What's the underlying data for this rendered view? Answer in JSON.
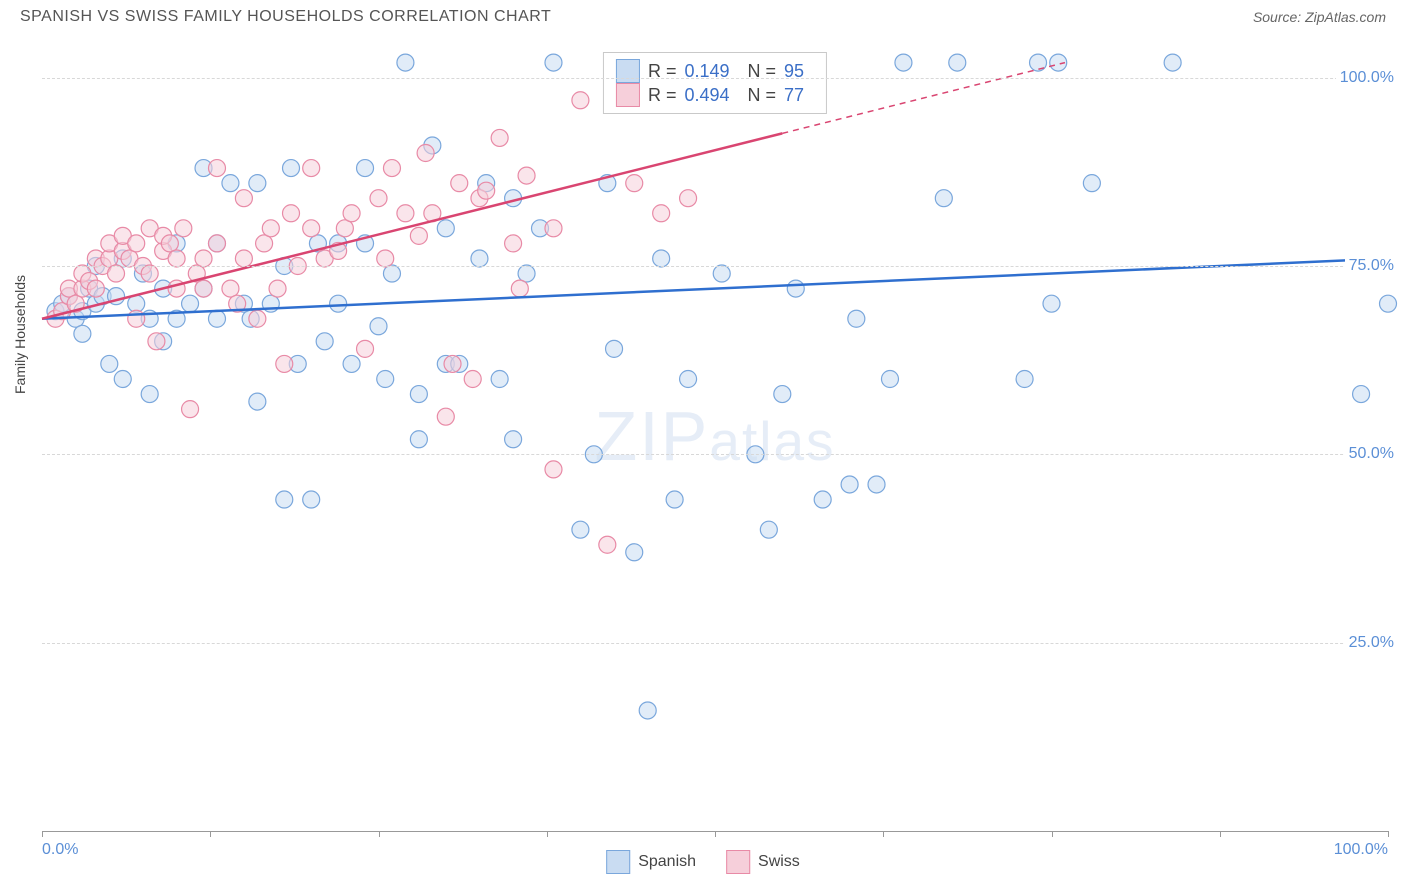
{
  "title": "SPANISH VS SWISS FAMILY HOUSEHOLDS CORRELATION CHART",
  "source": "Source: ZipAtlas.com",
  "y_axis_label": "Family Households",
  "watermark": {
    "part1": "ZIP",
    "part2": "atlas"
  },
  "chart": {
    "type": "scatter",
    "title_fontsize": 16,
    "label_fontsize": 14,
    "tick_fontsize": 16,
    "tick_color": "#5b8fd6",
    "background_color": "#ffffff",
    "grid_color": "#d8d8d8",
    "grid_dash": "5,4",
    "xlim": [
      0,
      100
    ],
    "ylim": [
      0,
      105
    ],
    "yticks": [
      25,
      50,
      75,
      100
    ],
    "ytick_labels": [
      "25.0%",
      "50.0%",
      "75.0%",
      "100.0%"
    ],
    "xticks": [
      0,
      12.5,
      25,
      37.5,
      50,
      62.5,
      75,
      87.5,
      100
    ],
    "xtick_labels_shown": {
      "0": "0.0%",
      "100": "100.0%"
    },
    "marker_radius": 8.5,
    "marker_opacity": 0.55,
    "marker_stroke_width": 1.2,
    "series": [
      {
        "name": "Spanish",
        "color_fill": "#c9dcf2",
        "color_stroke": "#7aa7dc",
        "color_line": "#2f6fcf",
        "R": 0.149,
        "N": 95,
        "trend": {
          "x1": 0,
          "y1": 68,
          "x2": 100,
          "y2": 76,
          "dash_from_x": null
        },
        "points": [
          [
            1,
            69
          ],
          [
            1.5,
            70
          ],
          [
            2,
            71
          ],
          [
            2.5,
            68
          ],
          [
            3,
            69
          ],
          [
            3.5,
            72
          ],
          [
            3,
            66
          ],
          [
            4,
            70
          ],
          [
            4.5,
            71
          ],
          [
            4,
            75
          ],
          [
            5,
            62
          ],
          [
            5.5,
            71
          ],
          [
            6,
            60
          ],
          [
            6,
            76
          ],
          [
            7,
            70
          ],
          [
            7.5,
            74
          ],
          [
            8,
            68
          ],
          [
            8,
            58
          ],
          [
            9,
            65
          ],
          [
            9,
            72
          ],
          [
            10,
            68
          ],
          [
            10,
            78
          ],
          [
            11,
            70
          ],
          [
            12,
            88
          ],
          [
            12,
            72
          ],
          [
            13,
            68
          ],
          [
            13,
            78
          ],
          [
            14,
            86
          ],
          [
            15,
            70
          ],
          [
            15.5,
            68
          ],
          [
            16,
            57
          ],
          [
            16,
            86
          ],
          [
            17,
            70
          ],
          [
            18,
            75
          ],
          [
            18,
            44
          ],
          [
            18.5,
            88
          ],
          [
            19,
            62
          ],
          [
            20,
            44
          ],
          [
            20.5,
            78
          ],
          [
            21,
            65
          ],
          [
            22,
            78
          ],
          [
            22,
            70
          ],
          [
            23,
            62
          ],
          [
            24,
            78
          ],
          [
            24,
            88
          ],
          [
            25,
            67
          ],
          [
            25.5,
            60
          ],
          [
            26,
            74
          ],
          [
            27,
            102
          ],
          [
            28,
            58
          ],
          [
            28,
            52
          ],
          [
            29,
            91
          ],
          [
            30,
            62
          ],
          [
            30,
            80
          ],
          [
            31,
            62
          ],
          [
            32.5,
            76
          ],
          [
            33,
            86
          ],
          [
            34,
            60
          ],
          [
            35,
            52
          ],
          [
            35,
            84
          ],
          [
            36,
            74
          ],
          [
            37,
            80
          ],
          [
            38,
            102
          ],
          [
            40,
            40
          ],
          [
            41,
            50
          ],
          [
            42,
            86
          ],
          [
            42.5,
            64
          ],
          [
            44,
            37
          ],
          [
            45,
            16
          ],
          [
            46,
            76
          ],
          [
            47,
            44
          ],
          [
            48,
            60
          ],
          [
            50,
            102
          ],
          [
            50.5,
            74
          ],
          [
            52,
            102
          ],
          [
            53,
            50
          ],
          [
            54,
            40
          ],
          [
            55,
            58
          ],
          [
            56,
            72
          ],
          [
            58,
            44
          ],
          [
            60,
            46
          ],
          [
            60.5,
            68
          ],
          [
            62,
            46
          ],
          [
            63,
            60
          ],
          [
            64,
            102
          ],
          [
            67,
            84
          ],
          [
            68,
            102
          ],
          [
            73,
            60
          ],
          [
            74,
            102
          ],
          [
            75,
            70
          ],
          [
            75.5,
            102
          ],
          [
            78,
            86
          ],
          [
            84,
            102
          ],
          [
            98,
            58
          ],
          [
            100,
            70
          ]
        ]
      },
      {
        "name": "Swiss",
        "color_fill": "#f6cfda",
        "color_stroke": "#e88aa6",
        "color_line": "#d94571",
        "R": 0.494,
        "N": 77,
        "trend": {
          "x1": 0,
          "y1": 68,
          "x2": 76,
          "y2": 102,
          "dash_from_x": 55
        },
        "points": [
          [
            1,
            68
          ],
          [
            1.5,
            69
          ],
          [
            2,
            71
          ],
          [
            2,
            72
          ],
          [
            2.5,
            70
          ],
          [
            3,
            72
          ],
          [
            3,
            74
          ],
          [
            3.5,
            73
          ],
          [
            4,
            76
          ],
          [
            4,
            72
          ],
          [
            4.5,
            75
          ],
          [
            5,
            76
          ],
          [
            5,
            78
          ],
          [
            5.5,
            74
          ],
          [
            6,
            77
          ],
          [
            6,
            79
          ],
          [
            6.5,
            76
          ],
          [
            7,
            78
          ],
          [
            7,
            68
          ],
          [
            7.5,
            75
          ],
          [
            8,
            80
          ],
          [
            8,
            74
          ],
          [
            8.5,
            65
          ],
          [
            9,
            77
          ],
          [
            9,
            79
          ],
          [
            9.5,
            78
          ],
          [
            10,
            72
          ],
          [
            10,
            76
          ],
          [
            10.5,
            80
          ],
          [
            11,
            56
          ],
          [
            11.5,
            74
          ],
          [
            12,
            72
          ],
          [
            12,
            76
          ],
          [
            13,
            78
          ],
          [
            13,
            88
          ],
          [
            14,
            72
          ],
          [
            14.5,
            70
          ],
          [
            15,
            84
          ],
          [
            15,
            76
          ],
          [
            16,
            68
          ],
          [
            16.5,
            78
          ],
          [
            17,
            80
          ],
          [
            17.5,
            72
          ],
          [
            18,
            62
          ],
          [
            18.5,
            82
          ],
          [
            19,
            75
          ],
          [
            20,
            88
          ],
          [
            20,
            80
          ],
          [
            21,
            76
          ],
          [
            22,
            77
          ],
          [
            22.5,
            80
          ],
          [
            23,
            82
          ],
          [
            24,
            64
          ],
          [
            25,
            84
          ],
          [
            25.5,
            76
          ],
          [
            26,
            88
          ],
          [
            27,
            82
          ],
          [
            28,
            79
          ],
          [
            28.5,
            90
          ],
          [
            29,
            82
          ],
          [
            30,
            55
          ],
          [
            30.5,
            62
          ],
          [
            31,
            86
          ],
          [
            32,
            60
          ],
          [
            32.5,
            84
          ],
          [
            33,
            85
          ],
          [
            34,
            92
          ],
          [
            35,
            78
          ],
          [
            35.5,
            72
          ],
          [
            36,
            87
          ],
          [
            38,
            80
          ],
          [
            38,
            48
          ],
          [
            40,
            97
          ],
          [
            42,
            38
          ],
          [
            44,
            86
          ],
          [
            46,
            82
          ],
          [
            48,
            84
          ]
        ]
      }
    ]
  },
  "legend_top": [
    {
      "swatch_fill": "#c9dcf2",
      "swatch_border": "#7aa7dc",
      "r_label": "R =",
      "r_val": "0.149",
      "n_label": "N =",
      "n_val": "95"
    },
    {
      "swatch_fill": "#f6cfda",
      "swatch_border": "#e88aa6",
      "r_label": "R =",
      "r_val": "0.494",
      "n_label": "N =",
      "n_val": "77"
    }
  ],
  "legend_bottom": [
    {
      "label": "Spanish",
      "fill": "#c9dcf2",
      "border": "#7aa7dc"
    },
    {
      "label": "Swiss",
      "fill": "#f6cfda",
      "border": "#e88aa6"
    }
  ]
}
